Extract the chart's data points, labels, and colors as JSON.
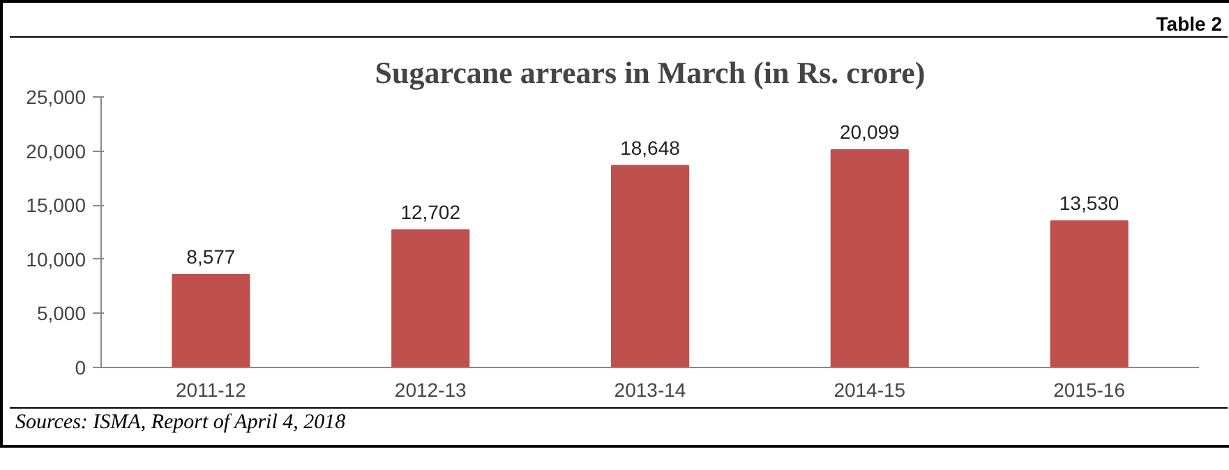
{
  "chart_data": {
    "type": "bar",
    "title": "Sugarcane arrears in March (in Rs. crore)",
    "categories": [
      "2011-12",
      "2012-13",
      "2013-14",
      "2014-15",
      "2015-16"
    ],
    "values": [
      8577,
      12702,
      18648,
      20099,
      13530
    ],
    "color": "#c0504d",
    "ylim": [
      0,
      25000
    ],
    "yticks": [
      {
        "value": 0,
        "label": "0"
      },
      {
        "value": 5000,
        "label": "5,000"
      },
      {
        "value": 10000,
        "label": "10,000"
      },
      {
        "value": 15000,
        "label": "15,000"
      },
      {
        "value": 20000,
        "label": "20,000"
      },
      {
        "value": 25000,
        "label": "25,000"
      }
    ],
    "grid": false,
    "value_labels": [
      "8,577",
      "12,702",
      "18,648",
      "20,099",
      "13,530"
    ],
    "annotations": [
      "Table 2",
      "Sources: ISMA, Report of April 4, 2018"
    ]
  }
}
